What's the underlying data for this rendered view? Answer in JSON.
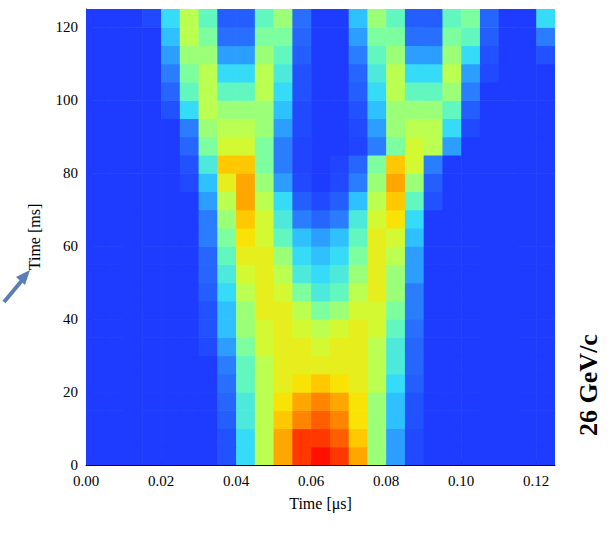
{
  "chart_data": {
    "type": "heatmap",
    "x_label": "Time [μs]",
    "y_label": "Time [ms]",
    "annotation": "26 GeV/c",
    "xlim": [
      0,
      0.125
    ],
    "ylim": [
      0,
      125
    ],
    "xticks": [
      {
        "value": 0,
        "label": "0.00"
      },
      0.02,
      0.04,
      0.06,
      0.08,
      {
        "value": 0.1,
        "label": "0.10"
      },
      0.12
    ],
    "yticks": [
      0,
      20,
      40,
      60,
      80,
      100,
      120
    ],
    "zlim": [
      0,
      10
    ],
    "grid": false,
    "x_bins": [
      0,
      0.005,
      0.01,
      0.015,
      0.02,
      0.025,
      0.03,
      0.035,
      0.04,
      0.045,
      0.05,
      0.055,
      0.06,
      0.065,
      0.07,
      0.075,
      0.08,
      0.085,
      0.09,
      0.095,
      0.1,
      0.105,
      0.11,
      0.115,
      0.12,
      0.125
    ],
    "y_bins": [
      0,
      5,
      10,
      15,
      20,
      25,
      30,
      35,
      40,
      45,
      50,
      55,
      60,
      65,
      70,
      75,
      80,
      85,
      90,
      95,
      100,
      105,
      110,
      115,
      120,
      125
    ],
    "cells": [
      [
        0,
        0,
        0,
        0,
        0,
        0,
        0,
        0.5,
        3,
        5.5,
        8,
        9.5,
        10,
        9.5,
        8,
        5,
        2,
        0.3,
        0,
        0,
        0,
        0,
        0,
        0,
        0
      ],
      [
        0,
        0,
        0,
        0,
        0,
        0,
        0,
        0.5,
        3,
        5.5,
        8,
        9.5,
        9.5,
        9,
        7.5,
        5,
        2,
        0.3,
        0,
        0,
        0,
        0,
        0,
        0,
        0
      ],
      [
        0,
        0,
        0,
        0,
        0,
        0,
        0,
        0.8,
        3.5,
        5.5,
        7.5,
        8.5,
        9,
        8.5,
        7,
        5,
        2.5,
        0.5,
        0,
        0,
        0,
        0,
        0,
        0,
        0
      ],
      [
        0,
        0,
        0,
        0,
        0,
        0,
        0,
        1,
        3.5,
        5.5,
        7,
        8,
        8.5,
        8,
        7,
        5,
        2.5,
        0.5,
        0,
        0,
        0,
        0,
        0,
        0,
        0
      ],
      [
        0,
        0,
        0,
        0,
        0,
        0,
        0,
        1.2,
        4,
        5.5,
        6.5,
        7,
        7.5,
        7,
        6.5,
        5.5,
        3,
        0.8,
        0,
        0,
        0,
        0,
        0,
        0,
        0
      ],
      [
        0,
        0,
        0,
        0,
        0,
        0,
        0,
        1.5,
        4,
        5.5,
        6.5,
        6.5,
        6.5,
        6.5,
        6.5,
        5.5,
        3.5,
        1,
        0,
        0,
        0,
        0,
        0,
        0,
        0
      ],
      [
        0,
        0,
        0,
        0,
        0,
        0,
        0.3,
        2,
        4.5,
        6,
        6.5,
        6.5,
        6,
        6.5,
        6.5,
        5.5,
        3.5,
        1,
        0,
        0,
        0,
        0,
        0,
        0,
        0
      ],
      [
        0,
        0,
        0,
        0,
        0,
        0,
        0.5,
        2.5,
        5,
        6,
        6.5,
        6,
        5.5,
        6,
        6.5,
        6,
        4,
        1.2,
        0,
        0,
        0,
        0,
        0,
        0,
        0
      ],
      [
        0,
        0,
        0,
        0,
        0,
        0,
        0.5,
        2.5,
        5,
        6.5,
        6.5,
        5.5,
        4.5,
        5,
        6,
        6,
        4.5,
        1.5,
        0,
        0,
        0,
        0,
        0,
        0,
        0
      ],
      [
        0,
        0,
        0,
        0,
        0,
        0,
        0.8,
        3,
        5.5,
        6.5,
        6,
        4.5,
        3.5,
        4,
        5.5,
        6.5,
        5,
        1.5,
        0,
        0,
        0,
        0,
        0,
        0,
        0
      ],
      [
        0,
        0,
        0,
        0,
        0,
        0,
        1,
        3.5,
        6,
        6.5,
        5.5,
        3.5,
        3,
        3.5,
        5,
        6.5,
        5,
        2,
        0,
        0,
        0,
        0,
        0,
        0,
        0
      ],
      [
        0,
        0,
        0,
        0,
        0,
        0,
        1,
        4,
        6.5,
        6.5,
        5,
        3,
        2.5,
        3,
        4.5,
        6.5,
        5.5,
        2,
        0,
        0,
        0,
        0,
        0,
        0,
        0
      ],
      [
        0,
        0,
        0,
        0,
        0,
        0,
        1.5,
        4.5,
        7,
        6,
        4,
        2.5,
        2,
        2.5,
        4,
        6.5,
        6,
        2.5,
        0,
        0,
        0,
        0,
        0,
        0,
        0
      ],
      [
        0,
        0,
        0,
        0,
        0,
        0,
        1.5,
        5,
        7.5,
        6,
        3.5,
        1.5,
        1,
        1.5,
        3.5,
        6,
        7,
        3,
        0,
        0,
        0,
        0,
        0,
        0,
        0
      ],
      [
        0,
        0,
        0,
        0,
        0,
        0,
        2,
        5.5,
        8,
        5.5,
        3,
        0.8,
        0.3,
        0.8,
        2.5,
        5.5,
        7.5,
        4,
        0.5,
        0,
        0,
        0,
        0,
        0,
        0
      ],
      [
        0,
        0,
        0,
        0,
        0,
        0.3,
        2.5,
        6.5,
        8,
        5,
        2,
        0.3,
        0,
        0.3,
        1.5,
        5,
        8,
        5,
        0.8,
        0,
        0,
        0,
        0,
        0,
        0
      ],
      [
        0,
        0,
        0,
        0,
        0,
        0.5,
        3.5,
        7.5,
        7.5,
        4.5,
        1.5,
        0.2,
        0,
        0.2,
        1,
        4.5,
        7.5,
        6,
        1.5,
        0,
        0,
        0,
        0,
        0,
        0
      ],
      [
        0,
        0,
        0,
        0,
        0,
        1,
        4.5,
        6,
        6,
        4.5,
        1.5,
        0.2,
        0,
        0,
        0.2,
        1.5,
        4.5,
        6,
        5.5,
        2,
        0,
        0,
        0,
        0,
        0
      ],
      [
        0,
        0,
        0,
        0,
        0,
        1.5,
        5,
        5.5,
        5.5,
        5,
        2,
        0.3,
        0,
        0,
        0.3,
        2,
        5,
        5.5,
        5.5,
        3,
        0.3,
        0,
        0,
        0,
        0
      ],
      [
        0,
        0,
        0,
        0,
        0.5,
        3,
        5.5,
        5,
        5,
        5,
        2.5,
        0.3,
        0,
        0,
        0.5,
        2.5,
        5,
        5,
        5,
        4,
        0.8,
        0,
        0,
        0,
        0
      ],
      [
        0,
        0,
        0,
        0,
        1,
        4,
        5.5,
        4,
        4,
        5.5,
        3,
        0.5,
        0,
        0,
        0.8,
        3,
        5.5,
        4,
        4,
        5,
        1.5,
        0,
        0,
        0,
        0
      ],
      [
        0,
        0,
        0,
        0,
        1.5,
        4.5,
        5.5,
        3,
        3,
        5.5,
        3.5,
        0.5,
        0,
        0,
        1,
        3.5,
        5.5,
        3,
        3,
        5.5,
        2,
        0.3,
        0,
        0,
        0
      ],
      [
        0,
        0,
        0,
        0,
        2,
        5,
        5,
        2,
        2,
        5,
        4,
        0.8,
        0,
        0,
        1.5,
        4,
        5,
        2,
        2,
        5,
        3,
        0.5,
        0,
        0,
        0.5
      ],
      [
        0,
        0,
        0,
        0,
        2.5,
        5.5,
        4.5,
        1.2,
        1.2,
        4.5,
        4.5,
        1,
        0,
        0,
        2,
        4.5,
        4.5,
        1.2,
        1.2,
        4.5,
        4,
        0.8,
        0,
        0,
        1.5
      ],
      [
        0,
        0,
        0,
        0.3,
        3,
        5.5,
        4,
        0.8,
        0.8,
        4,
        5,
        1.2,
        0,
        0,
        2.5,
        5,
        4,
        0.8,
        0.8,
        4,
        4.5,
        1,
        0,
        0,
        3
      ]
    ]
  }
}
